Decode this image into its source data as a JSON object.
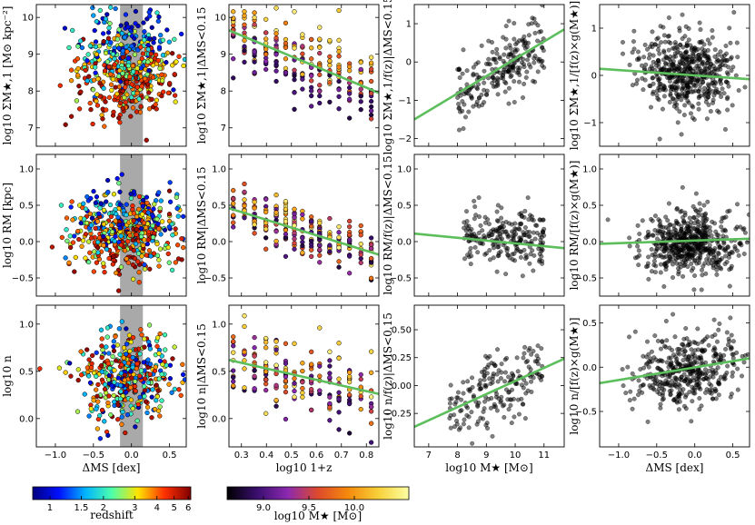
{
  "figure": {
    "colorbar_left": {
      "label": "redshift",
      "tick_labels": [
        "1",
        "1.5",
        "2",
        "3",
        "4",
        "5",
        "6"
      ],
      "tick_values": [
        1,
        1.5,
        2,
        3,
        4,
        5,
        6
      ],
      "range": [
        0.8,
        6.2
      ],
      "colormap": [
        "#00007f",
        "#0010ff",
        "#00b4ff",
        "#4dffaa",
        "#ffe400",
        "#ff3000",
        "#7f0000"
      ]
    },
    "colorbar_right": {
      "label": "log10 M★ [M⊙]",
      "tick_labels": [
        "9.0",
        "9.5",
        "10.0"
      ],
      "tick_values": [
        9.0,
        9.5,
        10.0
      ],
      "range": [
        8.6,
        10.6
      ],
      "colormap": [
        "#000000",
        "#3b0f70",
        "#8c29b0",
        "#dd4a2c",
        "#f58a0c",
        "#f8d13a",
        "#fcffa4"
      ]
    }
  },
  "chart_data": [
    {
      "id": "r0c0",
      "type": "scatter",
      "color_by": "redshift",
      "xlim": [
        -1.25,
        0.72
      ],
      "ylim": [
        6.5,
        10.35
      ],
      "xticks": [
        -1.0,
        -0.5,
        0.0,
        0.5
      ],
      "xtick_labels": [
        "",
        "",
        "",
        ""
      ],
      "yticks": [
        7,
        8,
        9,
        10
      ],
      "ytick_labels": [
        "7",
        "8",
        "9",
        "10"
      ],
      "ylabel": "log10 ΣM★,1 [M⊙ kpc⁻²]",
      "xlabel": "",
      "shaded_x": [
        -0.15,
        0.15
      ],
      "n_points": 520,
      "seed": 11,
      "model": "sigma"
    },
    {
      "id": "r0c1",
      "type": "scatter",
      "color_by": "mass",
      "xlim": [
        0.25,
        0.85
      ],
      "ylim": [
        6.5,
        10.35
      ],
      "xticks": [
        0.3,
        0.4,
        0.5,
        0.6,
        0.7,
        0.8
      ],
      "xtick_labels": [
        "",
        "",
        "",
        "",
        "",
        ""
      ],
      "yticks": [
        7,
        8,
        9,
        10
      ],
      "ytick_labels": [
        "7",
        "8",
        "9",
        "10"
      ],
      "ylabel": "log10 ΣM★,1|ΔMS<0.15",
      "xlabel": "",
      "fit": {
        "x": [
          0.25,
          0.85
        ],
        "y": [
          9.65,
          7.95
        ]
      },
      "n_points": 230,
      "seed": 12,
      "model": "z_sigma"
    },
    {
      "id": "r0c2",
      "type": "scatter",
      "color_by": "gray",
      "xlim": [
        6.5,
        11.7
      ],
      "ylim": [
        -2.2,
        1.5
      ],
      "xticks": [
        7,
        8,
        9,
        10,
        11
      ],
      "xtick_labels": [
        "",
        "",
        "",
        "",
        ""
      ],
      "yticks": [
        -2,
        -1,
        0,
        1
      ],
      "ytick_labels": [
        "−2",
        "−1",
        "0",
        "1"
      ],
      "ylabel": "log10 ΣM★,1/f(z)|ΔMS<0.15",
      "xlabel": "",
      "fit": {
        "x": [
          6.5,
          11.7
        ],
        "y": [
          -1.5,
          0.85
        ]
      },
      "n_points": 230,
      "seed": 13,
      "model": "m_sigma"
    },
    {
      "id": "r0c3",
      "type": "scatter",
      "color_by": "gray",
      "xlim": [
        -1.25,
        0.72
      ],
      "ylim": [
        -1.5,
        1.5
      ],
      "xticks": [
        -1.0,
        -0.5,
        0.0,
        0.5
      ],
      "xtick_labels": [
        "",
        "",
        "",
        ""
      ],
      "yticks": [
        -1,
        0,
        1
      ],
      "ytick_labels": [
        "−1",
        "0",
        "1"
      ],
      "ylabel": "log10 ΣM★,1/[f(z)×g(M★)]",
      "xlabel": "",
      "fit": {
        "x": [
          -1.25,
          0.72
        ],
        "y": [
          0.14,
          -0.08
        ]
      },
      "n_points": 540,
      "seed": 14,
      "model": "d_resid"
    },
    {
      "id": "r1c0",
      "type": "scatter",
      "color_by": "redshift",
      "xlim": [
        -1.25,
        0.72
      ],
      "ylim": [
        -0.75,
        1.2
      ],
      "xticks": [
        -1.0,
        -0.5,
        0.0,
        0.5
      ],
      "xtick_labels": [
        "",
        "",
        "",
        ""
      ],
      "yticks": [
        -0.5,
        0.0,
        0.5,
        1.0
      ],
      "ytick_labels": [
        "−0.5",
        "0.0",
        "0.5",
        "1.0"
      ],
      "ylabel": "log10 RM [kpc]",
      "xlabel": "",
      "shaded_x": [
        -0.15,
        0.15
      ],
      "n_points": 520,
      "seed": 21,
      "model": "size"
    },
    {
      "id": "r1c1",
      "type": "scatter",
      "color_by": "mass",
      "xlim": [
        0.25,
        0.85
      ],
      "ylim": [
        -0.75,
        1.2
      ],
      "xticks": [
        0.3,
        0.4,
        0.5,
        0.6,
        0.7,
        0.8
      ],
      "xtick_labels": [
        "",
        "",
        "",
        "",
        "",
        ""
      ],
      "yticks": [
        -0.5,
        0.0,
        0.5,
        1.0
      ],
      "ytick_labels": [
        "−0.5",
        "0.0",
        "0.5",
        "1.0"
      ],
      "ylabel": "log10 RM|ΔMS<0.15",
      "xlabel": "",
      "fit": {
        "x": [
          0.25,
          0.85
        ],
        "y": [
          0.46,
          -0.18
        ]
      },
      "n_points": 230,
      "seed": 22,
      "model": "z_size"
    },
    {
      "id": "r1c2",
      "type": "scatter",
      "color_by": "gray",
      "xlim": [
        6.5,
        11.7
      ],
      "ylim": [
        -0.75,
        1.2
      ],
      "xticks": [
        7,
        8,
        9,
        10,
        11
      ],
      "xtick_labels": [
        "",
        "",
        "",
        "",
        ""
      ],
      "yticks": [
        -0.5,
        0.0,
        0.5,
        1.0
      ],
      "ytick_labels": [
        "−0.5",
        "0.0",
        "0.5",
        "1.0"
      ],
      "ylabel": "log10 RM/f(z)|ΔMS<0.15",
      "xlabel": "",
      "fit": {
        "x": [
          6.5,
          11.7
        ],
        "y": [
          0.11,
          -0.09
        ]
      },
      "n_points": 230,
      "seed": 23,
      "model": "m_size"
    },
    {
      "id": "r1c3",
      "type": "scatter",
      "color_by": "gray",
      "xlim": [
        -1.25,
        0.72
      ],
      "ylim": [
        -0.75,
        1.2
      ],
      "xticks": [
        -1.0,
        -0.5,
        0.0,
        0.5
      ],
      "xtick_labels": [
        "",
        "",
        "",
        ""
      ],
      "yticks": [
        -0.5,
        0.0,
        0.5,
        1.0
      ],
      "ytick_labels": [
        "−0.5",
        "0.0",
        "0.5",
        "1.0"
      ],
      "ylabel": "log10 RM/[f(z)×g(M★)]",
      "xlabel": "",
      "fit": {
        "x": [
          -1.25,
          0.72
        ],
        "y": [
          -0.03,
          0.04
        ]
      },
      "n_points": 560,
      "seed": 24,
      "model": "d_size"
    },
    {
      "id": "r2c0",
      "type": "scatter",
      "color_by": "redshift",
      "xlim": [
        -1.25,
        0.72
      ],
      "ylim": [
        -0.3,
        1.2
      ],
      "xticks": [
        -1.0,
        -0.5,
        0.0,
        0.5
      ],
      "xtick_labels": [
        "−1.0",
        "−0.5",
        "0.0",
        "0.5"
      ],
      "yticks": [
        0.0,
        0.5,
        1.0
      ],
      "ytick_labels": [
        "0.0",
        "0.5",
        "1.0"
      ],
      "ylabel": "log10 n",
      "xlabel": "ΔMS [dex]",
      "shaded_x": [
        -0.15,
        0.15
      ],
      "n_points": 400,
      "seed": 31,
      "model": "sersic"
    },
    {
      "id": "r2c1",
      "type": "scatter",
      "color_by": "mass",
      "xlim": [
        0.25,
        0.85
      ],
      "ylim": [
        -0.3,
        1.2
      ],
      "xticks": [
        0.3,
        0.4,
        0.5,
        0.6,
        0.7,
        0.8
      ],
      "xtick_labels": [
        "0.3",
        "0.4",
        "0.5",
        "0.6",
        "0.7",
        "0.8"
      ],
      "yticks": [
        0.0,
        0.5,
        1.0
      ],
      "ytick_labels": [
        "0.0",
        "0.5",
        "1.0"
      ],
      "ylabel": "log10 n|ΔMS<0.15",
      "xlabel": "log10 1+z",
      "fit": {
        "x": [
          0.25,
          0.85
        ],
        "y": [
          0.62,
          0.26
        ]
      },
      "n_points": 190,
      "seed": 32,
      "model": "z_sersic"
    },
    {
      "id": "r2c2",
      "type": "scatter",
      "color_by": "gray",
      "xlim": [
        6.5,
        11.7
      ],
      "ylim": [
        -0.55,
        0.72
      ],
      "xticks": [
        7,
        8,
        9,
        10,
        11
      ],
      "xtick_labels": [
        "7",
        "8",
        "9",
        "10",
        "11"
      ],
      "yticks": [
        -0.25,
        0.0,
        0.25,
        0.5
      ],
      "ytick_labels": [
        "−0.25",
        "0.00",
        "0.25",
        "0.50"
      ],
      "ylabel": "log10 n/f(z)|ΔMS<0.15",
      "xlabel": "log10 M★ [M⊙]",
      "fit": {
        "x": [
          6.5,
          11.7
        ],
        "y": [
          -0.37,
          0.24
        ]
      },
      "n_points": 190,
      "seed": 33,
      "model": "m_sersic"
    },
    {
      "id": "r2c3",
      "type": "scatter",
      "color_by": "gray",
      "xlim": [
        -1.25,
        0.72
      ],
      "ylim": [
        -0.9,
        0.7
      ],
      "xticks": [
        -1.0,
        -0.5,
        0.0,
        0.5
      ],
      "xtick_labels": [
        "−1.0",
        "−0.5",
        "0.0",
        "0.5"
      ],
      "yticks": [
        -0.5,
        0.0,
        0.5
      ],
      "ytick_labels": [
        "−0.5",
        "0.0",
        "0.5"
      ],
      "ylabel": "log10 n/[f(z)×g(M★)]",
      "xlabel": "ΔMS [dex]",
      "fit": {
        "x": [
          -1.25,
          0.72
        ],
        "y": [
          -0.18,
          0.1
        ]
      },
      "n_points": 420,
      "seed": 34,
      "model": "d_sersic"
    }
  ]
}
